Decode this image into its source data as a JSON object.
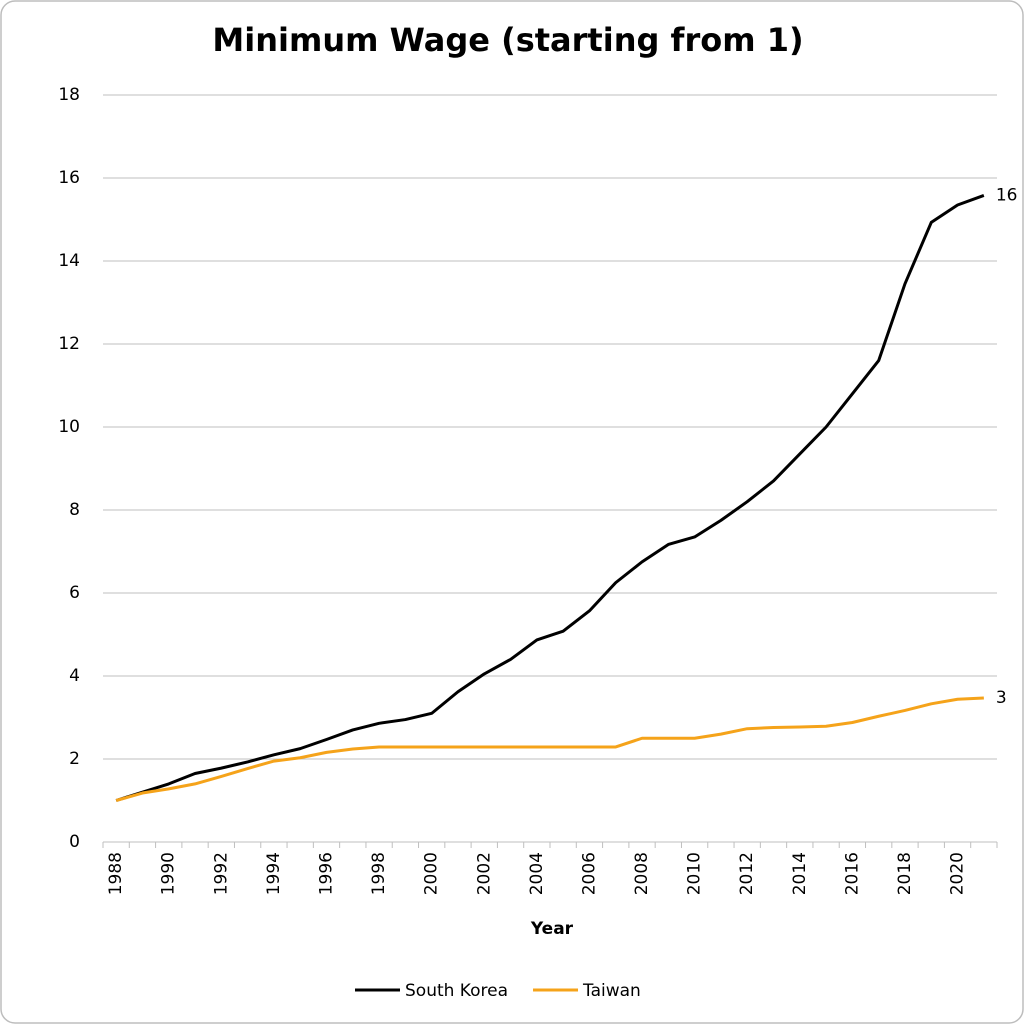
{
  "chart_data": {
    "type": "line",
    "title": "Minimum Wage (starting from 1)",
    "x_label": "Year",
    "categories": [
      "1988",
      null,
      "1990",
      null,
      "1992",
      null,
      "1994",
      null,
      "1996",
      null,
      "1998",
      null,
      "2000",
      null,
      "2002",
      null,
      "2004",
      null,
      "2006",
      null,
      "2008",
      null,
      "2010",
      null,
      "2012",
      null,
      "2014",
      null,
      "2016",
      null,
      "2018",
      null,
      "2020",
      null
    ],
    "series": [
      {
        "name": "South Korea",
        "color": "#000000",
        "values": [
          1.0,
          1.2,
          1.4,
          1.65,
          1.78,
          1.93,
          2.1,
          2.25,
          2.47,
          2.7,
          2.86,
          2.95,
          3.1,
          3.62,
          4.05,
          4.4,
          4.87,
          5.08,
          5.57,
          6.25,
          6.75,
          7.17,
          7.35,
          7.75,
          8.2,
          8.7,
          9.35,
          10.0,
          10.8,
          11.6,
          13.45,
          14.93,
          15.35,
          15.58
        ],
        "value_labels": [
          null,
          null,
          null,
          null,
          null,
          null,
          null,
          null,
          null,
          null,
          null,
          null,
          null,
          null,
          null,
          null,
          null,
          null,
          null,
          null,
          null,
          null,
          null,
          null,
          null,
          null,
          null,
          null,
          null,
          null,
          null,
          null,
          null,
          "16"
        ]
      },
      {
        "name": "Taiwan",
        "color": "#f5a31a",
        "values": [
          1.0,
          1.18,
          1.28,
          1.4,
          1.58,
          1.77,
          1.95,
          2.03,
          2.16,
          2.24,
          2.29,
          2.29,
          2.29,
          2.29,
          2.29,
          2.29,
          2.29,
          2.29,
          2.29,
          2.29,
          2.5,
          2.5,
          2.5,
          2.6,
          2.73,
          2.76,
          2.77,
          2.79,
          2.88,
          3.03,
          3.17,
          3.33,
          3.44,
          3.47
        ],
        "value_labels": [
          null,
          null,
          null,
          null,
          null,
          null,
          null,
          null,
          null,
          null,
          null,
          null,
          null,
          null,
          null,
          null,
          null,
          null,
          null,
          null,
          null,
          null,
          null,
          null,
          null,
          null,
          null,
          null,
          null,
          null,
          null,
          null,
          null,
          "3"
        ]
      }
    ],
    "ylim": [
      0,
      18
    ],
    "yticks": [
      0,
      2,
      4,
      6,
      8,
      10,
      12,
      14,
      16,
      18
    ],
    "grid": true,
    "legend": "bottom"
  }
}
